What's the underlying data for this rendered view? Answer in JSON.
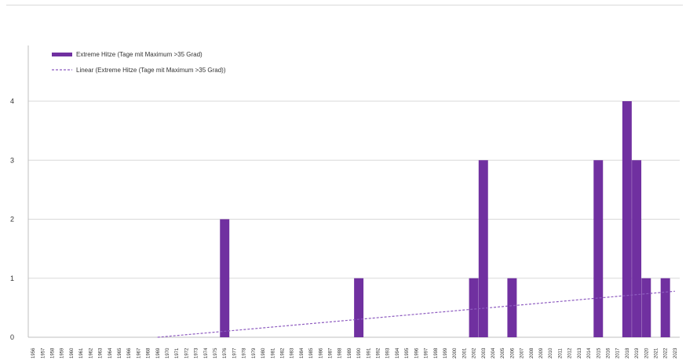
{
  "chart_data": {
    "type": "bar",
    "title": "",
    "xlabel": "",
    "ylabel": "",
    "ylim": [
      0,
      4
    ],
    "yticks": [
      0,
      1,
      2,
      3,
      4
    ],
    "grid": "horizontal",
    "legend_position": "top-left",
    "categories": [
      "1956",
      "1957",
      "1958",
      "1959",
      "1960",
      "1961",
      "1962",
      "1963",
      "1964",
      "1965",
      "1966",
      "1967",
      "1968",
      "1969",
      "1970",
      "1971",
      "1972",
      "1973",
      "1974",
      "1975",
      "1976",
      "1977",
      "1978",
      "1979",
      "1980",
      "1981",
      "1982",
      "1983",
      "1984",
      "1985",
      "1986",
      "1987",
      "1988",
      "1989",
      "1990",
      "1991",
      "1992",
      "1993",
      "1994",
      "1995",
      "1996",
      "1997",
      "1998",
      "1999",
      "2000",
      "2001",
      "2002",
      "2003",
      "2004",
      "2005",
      "2006",
      "2007",
      "2008",
      "2009",
      "2010",
      "2011",
      "2012",
      "2013",
      "2014",
      "2015",
      "2016",
      "2017",
      "2018",
      "2019",
      "2020",
      "2021",
      "2022",
      "2023"
    ],
    "series": [
      {
        "name": "Extreme Hitze (Tage mit Maximum >35 Grad)",
        "type": "bar",
        "color": "#7030a0",
        "values": [
          0,
          0,
          0,
          0,
          0,
          0,
          0,
          0,
          0,
          0,
          0,
          0,
          0,
          0,
          0,
          0,
          0,
          0,
          0,
          0,
          2,
          0,
          0,
          0,
          0,
          0,
          0,
          0,
          0,
          0,
          0,
          0,
          0,
          0,
          1,
          0,
          0,
          0,
          0,
          0,
          0,
          0,
          0,
          0,
          0,
          0,
          1,
          3,
          0,
          0,
          1,
          0,
          0,
          0,
          0,
          0,
          0,
          0,
          0,
          3,
          0,
          0,
          4,
          3,
          1,
          0,
          1,
          0
        ]
      },
      {
        "name": "Linear (Extreme Hitze (Tage mit Maximum >35 Grad))",
        "type": "trendline",
        "color": "#8e5cc0",
        "style": "dashed",
        "x": [
          "1969",
          "2023"
        ],
        "y": [
          0.0,
          0.78
        ]
      }
    ]
  }
}
